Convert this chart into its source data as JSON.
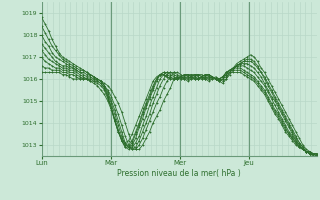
{
  "bg_color": "#cce8d8",
  "grid_color_v": "#b8d8c8",
  "grid_color_h": "#b8d8c8",
  "line_color": "#2d6e2d",
  "marker_color": "#2d6e2d",
  "xlabel": "Pression niveau de la mer( hPa )",
  "ylim": [
    1012.5,
    1019.5
  ],
  "yticks": [
    1013,
    1014,
    1015,
    1016,
    1017,
    1018,
    1019
  ],
  "day_labels": [
    "Lun",
    "Mar",
    "Mer",
    "Jeu"
  ],
  "day_positions": [
    0,
    48,
    96,
    144
  ],
  "total_hours": 191,
  "figsize": [
    3.2,
    2.0
  ],
  "dpi": 100,
  "series": [
    [
      1018.8,
      1018.5,
      1018.2,
      1017.8,
      1017.5,
      1017.2,
      1017.0,
      1016.9,
      1016.8,
      1016.7,
      1016.6,
      1016.5,
      1016.4,
      1016.3,
      1016.2,
      1016.1,
      1016.0,
      1015.9,
      1015.8,
      1015.7,
      1015.5,
      1015.2,
      1014.9,
      1014.5,
      1014.0,
      1013.5,
      1013.1,
      1012.8,
      1012.8,
      1013.0,
      1013.3,
      1013.6,
      1014.0,
      1014.3,
      1014.6,
      1015.0,
      1015.3,
      1015.6,
      1016.0,
      1016.1,
      1016.1,
      1016.0,
      1015.9,
      1016.0,
      1016.1,
      1016.2,
      1016.2,
      1016.1,
      1016.0,
      1016.1,
      1016.0,
      1015.9,
      1015.8,
      1016.0,
      1016.3,
      1016.5,
      1016.7,
      1016.8,
      1016.9,
      1017.0,
      1017.1,
      1017.0,
      1016.8,
      1016.5,
      1016.3,
      1016.0,
      1015.7,
      1015.4,
      1015.1,
      1014.8,
      1014.5,
      1014.2,
      1013.9,
      1013.6,
      1013.3,
      1013.0,
      1012.8,
      1012.7,
      1012.6,
      1012.5
    ],
    [
      1018.4,
      1018.1,
      1017.8,
      1017.5,
      1017.3,
      1017.1,
      1016.9,
      1016.8,
      1016.7,
      1016.6,
      1016.5,
      1016.4,
      1016.4,
      1016.3,
      1016.2,
      1016.1,
      1016.0,
      1015.9,
      1015.7,
      1015.5,
      1015.2,
      1014.8,
      1014.4,
      1013.9,
      1013.4,
      1013.0,
      1012.8,
      1012.8,
      1013.0,
      1013.3,
      1013.7,
      1014.1,
      1014.5,
      1014.9,
      1015.2,
      1015.6,
      1015.9,
      1016.1,
      1016.3,
      1016.3,
      1016.2,
      1016.1,
      1016.0,
      1016.1,
      1016.2,
      1016.2,
      1016.1,
      1016.0,
      1015.9,
      1016.0,
      1016.1,
      1016.0,
      1015.9,
      1016.0,
      1016.2,
      1016.4,
      1016.6,
      1016.7,
      1016.8,
      1016.9,
      1016.9,
      1016.8,
      1016.6,
      1016.3,
      1016.1,
      1015.8,
      1015.5,
      1015.2,
      1014.9,
      1014.6,
      1014.3,
      1014.0,
      1013.7,
      1013.4,
      1013.1,
      1012.9,
      1012.7,
      1012.6,
      1012.5,
      1012.5
    ],
    [
      1018.0,
      1017.7,
      1017.5,
      1017.2,
      1017.0,
      1016.9,
      1016.8,
      1016.7,
      1016.6,
      1016.5,
      1016.4,
      1016.3,
      1016.3,
      1016.2,
      1016.2,
      1016.1,
      1016.0,
      1015.9,
      1015.7,
      1015.4,
      1015.0,
      1014.6,
      1014.1,
      1013.6,
      1013.1,
      1012.9,
      1012.8,
      1012.9,
      1013.2,
      1013.6,
      1014.0,
      1014.4,
      1014.9,
      1015.3,
      1015.7,
      1016.0,
      1016.2,
      1016.3,
      1016.3,
      1016.2,
      1016.1,
      1016.0,
      1016.0,
      1016.1,
      1016.2,
      1016.2,
      1016.1,
      1016.0,
      1016.0,
      1016.1,
      1016.0,
      1015.9,
      1016.0,
      1016.1,
      1016.3,
      1016.5,
      1016.6,
      1016.7,
      1016.8,
      1016.8,
      1016.8,
      1016.7,
      1016.5,
      1016.3,
      1016.0,
      1015.7,
      1015.4,
      1015.1,
      1014.8,
      1014.5,
      1014.2,
      1013.9,
      1013.6,
      1013.3,
      1013.1,
      1012.9,
      1012.7,
      1012.6,
      1012.6,
      1012.5
    ],
    [
      1017.6,
      1017.4,
      1017.2,
      1017.0,
      1016.8,
      1016.7,
      1016.6,
      1016.6,
      1016.5,
      1016.5,
      1016.4,
      1016.3,
      1016.2,
      1016.1,
      1016.1,
      1016.0,
      1016.0,
      1015.9,
      1015.7,
      1015.3,
      1014.9,
      1014.4,
      1013.9,
      1013.4,
      1013.0,
      1012.9,
      1012.9,
      1013.1,
      1013.4,
      1013.9,
      1014.3,
      1014.8,
      1015.2,
      1015.6,
      1016.0,
      1016.2,
      1016.3,
      1016.3,
      1016.2,
      1016.1,
      1016.0,
      1016.0,
      1016.1,
      1016.2,
      1016.2,
      1016.1,
      1016.0,
      1016.0,
      1016.1,
      1016.1,
      1016.0,
      1015.9,
      1016.0,
      1016.2,
      1016.4,
      1016.5,
      1016.6,
      1016.7,
      1016.7,
      1016.7,
      1016.6,
      1016.5,
      1016.3,
      1016.1,
      1015.8,
      1015.5,
      1015.2,
      1015.0,
      1014.7,
      1014.4,
      1014.1,
      1013.8,
      1013.5,
      1013.2,
      1013.0,
      1012.8,
      1012.7,
      1012.6,
      1012.6,
      1012.5
    ],
    [
      1017.3,
      1017.1,
      1016.9,
      1016.8,
      1016.7,
      1016.6,
      1016.5,
      1016.5,
      1016.4,
      1016.4,
      1016.3,
      1016.2,
      1016.1,
      1016.0,
      1016.0,
      1016.0,
      1015.9,
      1015.8,
      1015.6,
      1015.2,
      1014.7,
      1014.2,
      1013.7,
      1013.2,
      1012.9,
      1012.8,
      1013.0,
      1013.3,
      1013.8,
      1014.2,
      1014.7,
      1015.1,
      1015.5,
      1015.9,
      1016.2,
      1016.3,
      1016.3,
      1016.2,
      1016.1,
      1016.0,
      1016.0,
      1016.1,
      1016.2,
      1016.2,
      1016.1,
      1016.0,
      1016.0,
      1016.1,
      1016.2,
      1016.1,
      1016.0,
      1016.0,
      1016.1,
      1016.2,
      1016.4,
      1016.5,
      1016.6,
      1016.6,
      1016.6,
      1016.5,
      1016.4,
      1016.3,
      1016.1,
      1015.9,
      1015.7,
      1015.4,
      1015.1,
      1014.8,
      1014.5,
      1014.2,
      1013.9,
      1013.6,
      1013.4,
      1013.2,
      1013.0,
      1012.8,
      1012.7,
      1012.6,
      1012.6,
      1012.6
    ],
    [
      1017.0,
      1016.8,
      1016.7,
      1016.6,
      1016.5,
      1016.5,
      1016.4,
      1016.4,
      1016.3,
      1016.3,
      1016.2,
      1016.1,
      1016.0,
      1016.0,
      1016.0,
      1015.9,
      1015.9,
      1015.8,
      1015.6,
      1015.2,
      1014.7,
      1014.1,
      1013.6,
      1013.2,
      1012.9,
      1012.9,
      1013.1,
      1013.5,
      1013.9,
      1014.4,
      1014.8,
      1015.2,
      1015.6,
      1016.0,
      1016.2,
      1016.3,
      1016.2,
      1016.1,
      1016.0,
      1016.0,
      1016.1,
      1016.2,
      1016.2,
      1016.1,
      1016.0,
      1016.0,
      1016.1,
      1016.2,
      1016.2,
      1016.1,
      1016.0,
      1016.0,
      1016.1,
      1016.3,
      1016.4,
      1016.5,
      1016.5,
      1016.5,
      1016.4,
      1016.3,
      1016.2,
      1016.1,
      1015.9,
      1015.7,
      1015.5,
      1015.2,
      1014.9,
      1014.6,
      1014.4,
      1014.1,
      1013.8,
      1013.5,
      1013.3,
      1013.1,
      1012.9,
      1012.8,
      1012.7,
      1012.6,
      1012.6,
      1012.6
    ],
    [
      1016.6,
      1016.5,
      1016.5,
      1016.4,
      1016.4,
      1016.4,
      1016.3,
      1016.3,
      1016.2,
      1016.2,
      1016.1,
      1016.0,
      1016.0,
      1016.0,
      1015.9,
      1015.9,
      1015.8,
      1015.7,
      1015.5,
      1015.1,
      1014.7,
      1014.1,
      1013.6,
      1013.2,
      1013.0,
      1013.0,
      1013.2,
      1013.6,
      1014.0,
      1014.5,
      1014.9,
      1015.3,
      1015.7,
      1016.0,
      1016.2,
      1016.2,
      1016.1,
      1016.0,
      1016.0,
      1016.0,
      1016.1,
      1016.2,
      1016.2,
      1016.1,
      1016.0,
      1016.0,
      1016.1,
      1016.2,
      1016.2,
      1016.1,
      1016.0,
      1016.0,
      1016.1,
      1016.3,
      1016.4,
      1016.4,
      1016.4,
      1016.4,
      1016.3,
      1016.2,
      1016.1,
      1016.0,
      1015.8,
      1015.6,
      1015.4,
      1015.1,
      1014.8,
      1014.5,
      1014.3,
      1014.0,
      1013.7,
      1013.5,
      1013.3,
      1013.1,
      1012.9,
      1012.8,
      1012.7,
      1012.7,
      1012.6,
      1012.6
    ],
    [
      1016.3,
      1016.3,
      1016.3,
      1016.3,
      1016.3,
      1016.3,
      1016.2,
      1016.2,
      1016.1,
      1016.0,
      1016.0,
      1016.0,
      1016.0,
      1016.0,
      1015.9,
      1015.8,
      1015.7,
      1015.5,
      1015.3,
      1015.0,
      1014.6,
      1014.1,
      1013.6,
      1013.3,
      1013.1,
      1013.2,
      1013.5,
      1013.9,
      1014.3,
      1014.7,
      1015.1,
      1015.5,
      1015.9,
      1016.1,
      1016.2,
      1016.2,
      1016.1,
      1016.0,
      1016.0,
      1016.0,
      1016.1,
      1016.2,
      1016.1,
      1016.0,
      1016.0,
      1016.0,
      1016.1,
      1016.2,
      1016.1,
      1016.0,
      1016.0,
      1016.0,
      1016.1,
      1016.2,
      1016.3,
      1016.3,
      1016.3,
      1016.3,
      1016.2,
      1016.1,
      1016.0,
      1015.9,
      1015.7,
      1015.5,
      1015.3,
      1015.0,
      1014.7,
      1014.4,
      1014.2,
      1013.9,
      1013.6,
      1013.4,
      1013.2,
      1013.0,
      1012.9,
      1012.8,
      1012.7,
      1012.7,
      1012.6,
      1012.6
    ]
  ]
}
